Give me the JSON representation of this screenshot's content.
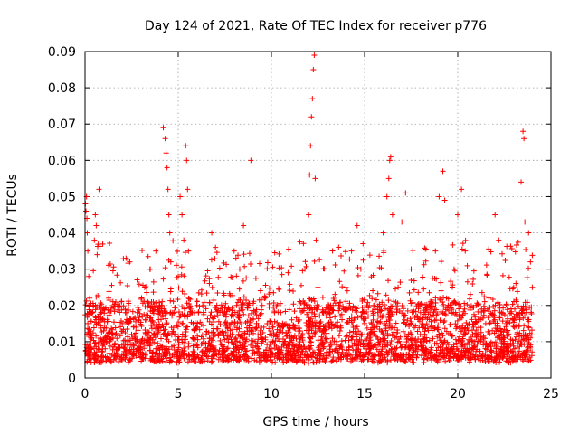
{
  "chart_data": {
    "type": "scatter",
    "title": "Day 124 of 2021, Rate Of TEC Index for receiver p776",
    "xlabel": "GPS time / hours",
    "ylabel": "ROTI / TECUs",
    "xlim": [
      0,
      25
    ],
    "ylim": [
      0,
      0.09
    ],
    "x_ticks": [
      0,
      5,
      10,
      15,
      20,
      25
    ],
    "x_tick_labels": [
      "0",
      "5",
      "10",
      "15",
      "20",
      "25"
    ],
    "y_ticks": [
      0,
      0.01,
      0.02,
      0.03,
      0.04,
      0.05,
      0.06,
      0.07,
      0.08,
      0.09
    ],
    "y_tick_labels": [
      "0",
      "0.01",
      "0.02",
      "0.03",
      "0.04",
      "0.05",
      "0.06",
      "0.07",
      "0.08",
      "0.09"
    ],
    "grid": true,
    "marker": "+",
    "color": "#ff0000",
    "series": [
      {
        "name": "ROTI",
        "points": [
          [
            0.02,
            0.048
          ],
          [
            0.05,
            0.046
          ],
          [
            0.08,
            0.05
          ],
          [
            0.1,
            0.044
          ],
          [
            0.12,
            0.04
          ],
          [
            0.15,
            0.035
          ],
          [
            0.2,
            0.028
          ],
          [
            0.25,
            0.022
          ],
          [
            0.1,
            0.012
          ],
          [
            0.15,
            0.015
          ],
          [
            0.2,
            0.009
          ],
          [
            0.3,
            0.018
          ],
          [
            0.35,
            0.008
          ],
          [
            0.45,
            0.02
          ],
          [
            0.5,
            0.038
          ],
          [
            0.55,
            0.045
          ],
          [
            0.6,
            0.042
          ],
          [
            0.65,
            0.034
          ],
          [
            0.7,
            0.015
          ],
          [
            0.75,
            0.052
          ],
          [
            0.8,
            0.011
          ],
          [
            0.9,
            0.006
          ],
          [
            1.0,
            0.013
          ],
          [
            1.5,
            0.011
          ],
          [
            2.0,
            0.015
          ],
          [
            2.2,
            0.033
          ],
          [
            2.4,
            0.032
          ],
          [
            2.5,
            0.012
          ],
          [
            2.8,
            0.018
          ],
          [
            3.0,
            0.01
          ],
          [
            3.2,
            0.025
          ],
          [
            3.5,
            0.03
          ],
          [
            3.8,
            0.035
          ],
          [
            4.0,
            0.02
          ],
          [
            4.2,
            0.069
          ],
          [
            4.3,
            0.066
          ],
          [
            4.35,
            0.062
          ],
          [
            4.4,
            0.058
          ],
          [
            4.45,
            0.052
          ],
          [
            4.5,
            0.045
          ],
          [
            4.55,
            0.04
          ],
          [
            4.6,
            0.032
          ],
          [
            4.7,
            0.018
          ],
          [
            4.8,
            0.012
          ],
          [
            5.0,
            0.028
          ],
          [
            5.1,
            0.05
          ],
          [
            5.2,
            0.045
          ],
          [
            5.3,
            0.038
          ],
          [
            5.4,
            0.064
          ],
          [
            5.45,
            0.06
          ],
          [
            5.5,
            0.052
          ],
          [
            5.55,
            0.035
          ],
          [
            5.8,
            0.015
          ],
          [
            6.0,
            0.02
          ],
          [
            6.5,
            0.012
          ],
          [
            6.8,
            0.04
          ],
          [
            7.0,
            0.036
          ],
          [
            7.5,
            0.018
          ],
          [
            8.0,
            0.035
          ],
          [
            8.3,
            0.03
          ],
          [
            8.5,
            0.042
          ],
          [
            8.8,
            0.012
          ],
          [
            8.9,
            0.06
          ],
          [
            9.2,
            0.015
          ],
          [
            9.5,
            0.02
          ],
          [
            10.0,
            0.008
          ],
          [
            10.5,
            0.013
          ],
          [
            11.0,
            0.009
          ],
          [
            11.5,
            0.016
          ],
          [
            11.8,
            0.03
          ],
          [
            12.0,
            0.045
          ],
          [
            12.05,
            0.056
          ],
          [
            12.1,
            0.064
          ],
          [
            12.15,
            0.072
          ],
          [
            12.2,
            0.077
          ],
          [
            12.25,
            0.085
          ],
          [
            12.3,
            0.089
          ],
          [
            12.35,
            0.055
          ],
          [
            12.4,
            0.038
          ],
          [
            12.5,
            0.025
          ],
          [
            12.8,
            0.018
          ],
          [
            13.0,
            0.015
          ],
          [
            13.5,
            0.01
          ],
          [
            14.0,
            0.025
          ],
          [
            14.3,
            0.035
          ],
          [
            14.6,
            0.042
          ],
          [
            14.8,
            0.03
          ],
          [
            15.0,
            0.015
          ],
          [
            15.5,
            0.02
          ],
          [
            16.0,
            0.04
          ],
          [
            16.2,
            0.05
          ],
          [
            16.3,
            0.055
          ],
          [
            16.35,
            0.06
          ],
          [
            16.4,
            0.061
          ],
          [
            16.5,
            0.045
          ],
          [
            16.8,
            0.025
          ],
          [
            17.0,
            0.043
          ],
          [
            17.2,
            0.051
          ],
          [
            17.5,
            0.03
          ],
          [
            18.0,
            0.018
          ],
          [
            18.5,
            0.02
          ],
          [
            18.8,
            0.035
          ],
          [
            19.0,
            0.05
          ],
          [
            19.2,
            0.057
          ],
          [
            19.3,
            0.049
          ],
          [
            19.4,
            0.022
          ],
          [
            19.8,
            0.03
          ],
          [
            20.0,
            0.045
          ],
          [
            20.2,
            0.052
          ],
          [
            20.4,
            0.035
          ],
          [
            20.8,
            0.012
          ],
          [
            21.0,
            0.02
          ],
          [
            21.5,
            0.015
          ],
          [
            22.0,
            0.045
          ],
          [
            22.2,
            0.038
          ],
          [
            22.5,
            0.011
          ],
          [
            23.0,
            0.025
          ],
          [
            23.4,
            0.054
          ],
          [
            23.5,
            0.068
          ],
          [
            23.55,
            0.066
          ],
          [
            23.6,
            0.043
          ],
          [
            23.8,
            0.04
          ],
          [
            23.9,
            0.032
          ],
          [
            24.0,
            0.025
          ]
        ],
        "dense_band": {
          "description": "dense cloud of points between roughly 0.005 and 0.02 TECU across 0-24 h",
          "x_range": [
            0.0,
            24.0
          ],
          "y_range": [
            0.004,
            0.02
          ]
        }
      }
    ]
  }
}
